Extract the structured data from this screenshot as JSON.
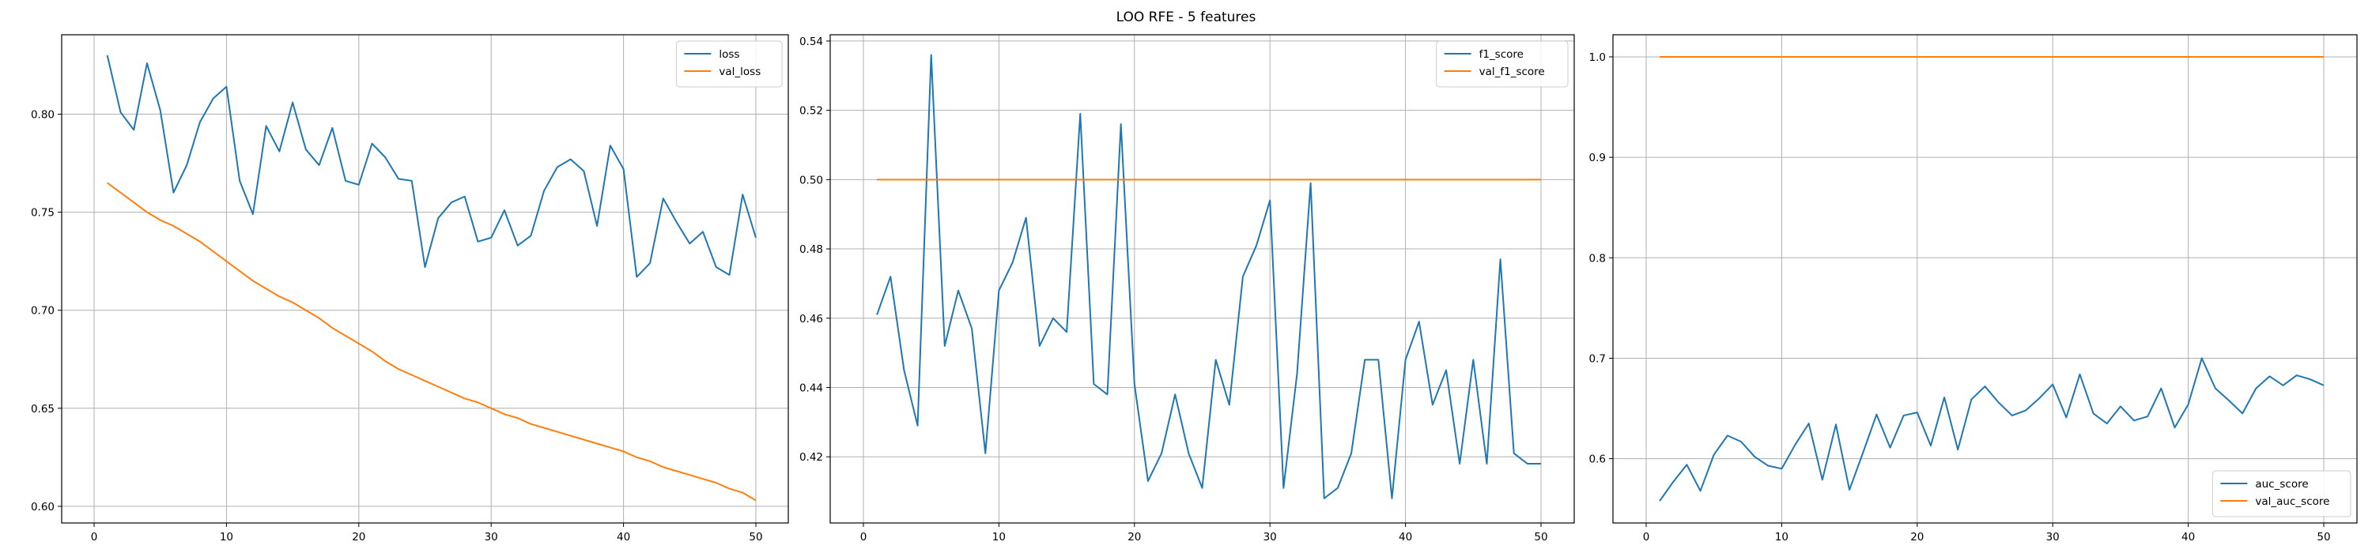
{
  "figure": {
    "suptitle": "LOO RFE - 5 features"
  },
  "colors": {
    "series1": "#1f77b4",
    "series2": "#ff7f0e",
    "grid": "#b0b0b0"
  },
  "chart_data": [
    {
      "type": "line",
      "xlim": [
        -2.45,
        52.45
      ],
      "ylim": [
        0.5915,
        0.8405
      ],
      "xticks": [
        0,
        10,
        20,
        30,
        40,
        50
      ],
      "yticks": [
        0.6,
        0.65,
        0.7,
        0.75,
        0.8
      ],
      "ytick_decimals": 2,
      "grid": true,
      "legend": "top-right",
      "x": [
        1,
        2,
        3,
        4,
        5,
        6,
        7,
        8,
        9,
        10,
        11,
        12,
        13,
        14,
        15,
        16,
        17,
        18,
        19,
        20,
        21,
        22,
        23,
        24,
        25,
        26,
        27,
        28,
        29,
        30,
        31,
        32,
        33,
        34,
        35,
        36,
        37,
        38,
        39,
        40,
        41,
        42,
        43,
        44,
        45,
        46,
        47,
        48,
        49,
        50
      ],
      "series": [
        {
          "name": "loss",
          "color": "#1f77b4",
          "values": [
            0.83,
            0.801,
            0.792,
            0.826,
            0.802,
            0.76,
            0.774,
            0.796,
            0.808,
            0.814,
            0.766,
            0.749,
            0.794,
            0.781,
            0.806,
            0.782,
            0.774,
            0.793,
            0.766,
            0.764,
            0.785,
            0.778,
            0.767,
            0.766,
            0.722,
            0.747,
            0.755,
            0.758,
            0.735,
            0.737,
            0.751,
            0.733,
            0.738,
            0.761,
            0.773,
            0.777,
            0.771,
            0.743,
            0.784,
            0.772,
            0.717,
            0.724,
            0.757,
            0.745,
            0.734,
            0.74,
            0.722,
            0.718,
            0.759,
            0.737
          ]
        },
        {
          "name": "val_loss",
          "color": "#ff7f0e",
          "values": [
            0.765,
            0.76,
            0.755,
            0.75,
            0.746,
            0.743,
            0.739,
            0.735,
            0.73,
            0.725,
            0.72,
            0.715,
            0.711,
            0.707,
            0.704,
            0.7,
            0.696,
            0.691,
            0.687,
            0.683,
            0.679,
            0.674,
            0.67,
            0.667,
            0.664,
            0.661,
            0.658,
            0.655,
            0.653,
            0.65,
            0.647,
            0.645,
            0.642,
            0.64,
            0.638,
            0.636,
            0.634,
            0.632,
            0.63,
            0.628,
            0.625,
            0.623,
            0.62,
            0.618,
            0.616,
            0.614,
            0.612,
            0.609,
            0.607,
            0.603
          ]
        }
      ]
    },
    {
      "type": "line",
      "xlim": [
        -2.45,
        52.45
      ],
      "ylim": [
        0.4009,
        0.5418
      ],
      "xticks": [
        0,
        10,
        20,
        30,
        40,
        50
      ],
      "yticks": [
        0.42,
        0.44,
        0.46,
        0.48,
        0.5,
        0.52,
        0.54
      ],
      "ytick_decimals": 2,
      "grid": true,
      "legend": "top-right",
      "x": [
        1,
        2,
        3,
        4,
        5,
        6,
        7,
        8,
        9,
        10,
        11,
        12,
        13,
        14,
        15,
        16,
        17,
        18,
        19,
        20,
        21,
        22,
        23,
        24,
        25,
        26,
        27,
        28,
        29,
        30,
        31,
        32,
        33,
        34,
        35,
        36,
        37,
        38,
        39,
        40,
        41,
        42,
        43,
        44,
        45,
        46,
        47,
        48,
        49,
        50
      ],
      "series": [
        {
          "name": "f1_score",
          "color": "#1f77b4",
          "values": [
            0.461,
            0.472,
            0.445,
            0.429,
            0.536,
            0.452,
            0.468,
            0.457,
            0.421,
            0.468,
            0.476,
            0.489,
            0.452,
            0.46,
            0.456,
            0.519,
            0.441,
            0.438,
            0.516,
            0.441,
            0.413,
            0.421,
            0.438,
            0.421,
            0.411,
            0.448,
            0.435,
            0.472,
            0.481,
            0.494,
            0.411,
            0.444,
            0.499,
            0.408,
            0.411,
            0.421,
            0.448,
            0.448,
            0.408,
            0.448,
            0.459,
            0.435,
            0.445,
            0.418,
            0.448,
            0.418,
            0.477,
            0.421,
            0.418,
            0.418
          ]
        },
        {
          "name": "val_f1_score",
          "color": "#ff7f0e",
          "values": [
            0.5,
            0.5,
            0.5,
            0.5,
            0.5,
            0.5,
            0.5,
            0.5,
            0.5,
            0.5,
            0.5,
            0.5,
            0.5,
            0.5,
            0.5,
            0.5,
            0.5,
            0.5,
            0.5,
            0.5,
            0.5,
            0.5,
            0.5,
            0.5,
            0.5,
            0.5,
            0.5,
            0.5,
            0.5,
            0.5,
            0.5,
            0.5,
            0.5,
            0.5,
            0.5,
            0.5,
            0.5,
            0.5,
            0.5,
            0.5,
            0.5,
            0.5,
            0.5,
            0.5,
            0.5,
            0.5,
            0.5,
            0.5,
            0.5,
            0.5
          ]
        }
      ]
    },
    {
      "type": "line",
      "xlim": [
        -2.45,
        52.45
      ],
      "ylim": [
        0.536,
        1.022
      ],
      "xticks": [
        0,
        10,
        20,
        30,
        40,
        50
      ],
      "yticks": [
        0.6,
        0.7,
        0.8,
        0.9,
        1.0
      ],
      "ytick_decimals": 1,
      "grid": true,
      "legend": "bottom-right",
      "x": [
        1,
        2,
        3,
        4,
        5,
        6,
        7,
        8,
        9,
        10,
        11,
        12,
        13,
        14,
        15,
        16,
        17,
        18,
        19,
        20,
        21,
        22,
        23,
        24,
        25,
        26,
        27,
        28,
        29,
        30,
        31,
        32,
        33,
        34,
        35,
        36,
        37,
        38,
        39,
        40,
        41,
        42,
        43,
        44,
        45,
        46,
        47,
        48,
        49,
        50
      ],
      "series": [
        {
          "name": "auc_score",
          "color": "#1f77b4",
          "values": [
            0.558,
            0.577,
            0.594,
            0.568,
            0.604,
            0.623,
            0.617,
            0.602,
            0.593,
            0.59,
            0.614,
            0.635,
            0.579,
            0.634,
            0.569,
            0.606,
            0.644,
            0.611,
            0.643,
            0.646,
            0.613,
            0.661,
            0.609,
            0.659,
            0.672,
            0.656,
            0.643,
            0.648,
            0.66,
            0.674,
            0.641,
            0.684,
            0.645,
            0.635,
            0.652,
            0.638,
            0.642,
            0.67,
            0.631,
            0.654,
            0.7,
            0.67,
            0.658,
            0.645,
            0.67,
            0.682,
            0.673,
            0.683,
            0.679,
            0.673
          ]
        },
        {
          "name": "val_auc_score",
          "color": "#ff7f0e",
          "values": [
            1.0,
            1.0,
            1.0,
            1.0,
            1.0,
            1.0,
            1.0,
            1.0,
            1.0,
            1.0,
            1.0,
            1.0,
            1.0,
            1.0,
            1.0,
            1.0,
            1.0,
            1.0,
            1.0,
            1.0,
            1.0,
            1.0,
            1.0,
            1.0,
            1.0,
            1.0,
            1.0,
            1.0,
            1.0,
            1.0,
            1.0,
            1.0,
            1.0,
            1.0,
            1.0,
            1.0,
            1.0,
            1.0,
            1.0,
            1.0,
            1.0,
            1.0,
            1.0,
            1.0,
            1.0,
            1.0,
            1.0,
            1.0,
            1.0,
            1.0
          ]
        }
      ]
    }
  ]
}
